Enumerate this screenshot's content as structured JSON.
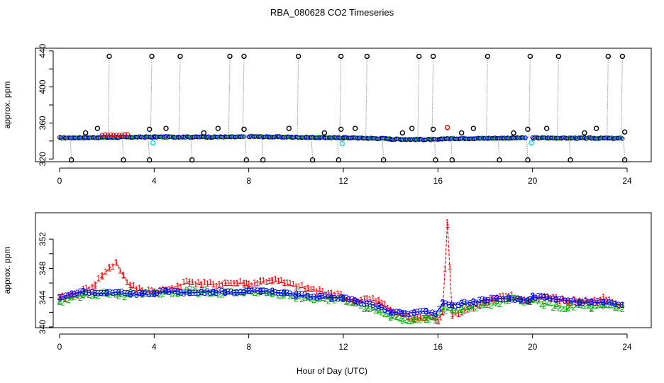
{
  "chart_data": {
    "type": "scatter",
    "title": "RBA_080628  CO2 Timeseries",
    "xlabel": "Hour of Day (UTC)",
    "colors": {
      "black": "#000000",
      "red": "#ff0000",
      "blue": "#0000ff",
      "cyan": "#00e0e0",
      "green": "#00b000",
      "gray": "#8c8c8c"
    },
    "top_panel": {
      "ylabel": "approx. ppm",
      "xlim": [
        0,
        24
      ],
      "ylim": [
        317,
        443
      ],
      "x_ticks": [
        "0",
        "4",
        "8",
        "12",
        "16",
        "20",
        "24"
      ],
      "y_ticks": [
        "320",
        "360",
        "400",
        "440"
      ],
      "y_tick_values": [
        320,
        340,
        360,
        380,
        400,
        420,
        440
      ],
      "baseline_segments": [
        {
          "x": [
            0.0,
            4.0
          ],
          "y": [
            343.5,
            344.5
          ]
        },
        {
          "x": [
            4.0,
            7.8
          ],
          "y": [
            344.5,
            344.5
          ]
        },
        {
          "x": [
            8.0,
            12.0
          ],
          "y": [
            345.0,
            343.5
          ]
        },
        {
          "x": [
            12.0,
            14.0
          ],
          "y": [
            343.8,
            342.5
          ]
        },
        {
          "x": [
            14.0,
            16.1
          ],
          "y": [
            342.0,
            341.5
          ]
        },
        {
          "x": [
            16.1,
            19.7
          ],
          "y": [
            342.5,
            343.5
          ]
        },
        {
          "x": [
            20.0,
            23.8
          ],
          "y": [
            343.5,
            343.0
          ]
        }
      ],
      "red_bump": {
        "x": [
          1.8,
          3.0
        ],
        "y": 347
      },
      "spike_high": [
        2.1,
        3.9,
        5.1,
        7.2,
        7.8,
        10.1,
        11.9,
        13.0,
        15.2,
        15.8,
        18.1,
        19.9,
        21.1,
        23.2,
        23.8
      ],
      "spike_low": [
        0.5,
        2.7,
        3.8,
        5.6,
        7.9,
        8.6,
        10.7,
        11.8,
        13.7,
        15.9,
        16.6,
        18.6,
        19.8,
        21.6,
        23.9
      ],
      "outliers_high": [
        {
          "x": 1.1,
          "y": 349
        },
        {
          "x": 1.6,
          "y": 354
        },
        {
          "x": 3.8,
          "y": 353
        },
        {
          "x": 4.5,
          "y": 354
        },
        {
          "x": 6.1,
          "y": 349
        },
        {
          "x": 6.7,
          "y": 354
        },
        {
          "x": 7.8,
          "y": 353
        },
        {
          "x": 9.7,
          "y": 354
        },
        {
          "x": 11.2,
          "y": 349
        },
        {
          "x": 11.9,
          "y": 353
        },
        {
          "x": 12.5,
          "y": 354
        },
        {
          "x": 14.5,
          "y": 349
        },
        {
          "x": 14.9,
          "y": 354
        },
        {
          "x": 15.8,
          "y": 353
        },
        {
          "x": 17.0,
          "y": 349
        },
        {
          "x": 17.5,
          "y": 354
        },
        {
          "x": 19.2,
          "y": 349
        },
        {
          "x": 19.8,
          "y": 353
        },
        {
          "x": 20.6,
          "y": 354
        },
        {
          "x": 22.2,
          "y": 349
        },
        {
          "x": 22.7,
          "y": 354
        },
        {
          "x": 23.9,
          "y": 350
        }
      ],
      "red_outliers": [
        {
          "x": 16.4,
          "y": 355
        }
      ],
      "cyan_points": [
        {
          "x": 3.95,
          "y": 338
        },
        {
          "x": 11.95,
          "y": 337
        },
        {
          "x": 19.95,
          "y": 338
        }
      ]
    },
    "bottom_panel": {
      "ylabel": "approx. ppm",
      "xlim": [
        0,
        24
      ],
      "ylim": [
        339.9,
        355.6
      ],
      "x_ticks": [
        "0",
        "4",
        "8",
        "12",
        "16",
        "20",
        "24"
      ],
      "y_ticks": [
        "340",
        "344",
        "348",
        "352"
      ],
      "y_tick_values": [
        340,
        342,
        344,
        346,
        348,
        350,
        352
      ],
      "series": [
        {
          "name": "1",
          "color": "red",
          "x": [
            0,
            0.5,
            1.0,
            1.5,
            1.8,
            2.1,
            2.4,
            2.7,
            3.0,
            3.5,
            3.9,
            4.0,
            4.5,
            5.0,
            5.5,
            6.0,
            6.5,
            7.0,
            7.5,
            7.8,
            8.0,
            8.5,
            9.0,
            9.5,
            10.0,
            10.5,
            11.0,
            11.5,
            11.9,
            12.0,
            12.5,
            13.0,
            13.5,
            14.0,
            14.5,
            15.0,
            15.5,
            16.0,
            16.2,
            16.4,
            16.6,
            17.0,
            17.5,
            18.0,
            18.5,
            19.0,
            19.5,
            19.8,
            20.0,
            20.5,
            21.0,
            21.5,
            22.0,
            22.5,
            23.0,
            23.5,
            23.8
          ],
          "y": [
            343.8,
            344.3,
            344.9,
            345.8,
            347.0,
            348.0,
            348.8,
            347.0,
            345.5,
            345.0,
            345.0,
            344.8,
            345.0,
            345.6,
            346.2,
            345.8,
            345.8,
            346.0,
            346.0,
            346.0,
            345.8,
            346.2,
            346.4,
            346.0,
            345.5,
            345.2,
            344.9,
            344.6,
            344.5,
            343.8,
            343.6,
            343.8,
            343.5,
            342.3,
            341.8,
            341.0,
            341.3,
            341.0,
            342.0,
            354.3,
            341.8,
            342.0,
            342.8,
            343.2,
            343.8,
            344.2,
            343.8,
            343.5,
            343.8,
            344.2,
            343.8,
            343.4,
            343.6,
            343.4,
            343.8,
            343.2,
            343.0
          ]
        },
        {
          "name": "2",
          "color": "green",
          "x": [
            0,
            0.5,
            1.0,
            1.5,
            2.0,
            2.5,
            3.0,
            3.5,
            3.9,
            4.0,
            4.5,
            5.0,
            5.5,
            6.0,
            6.5,
            7.0,
            7.5,
            7.8,
            8.0,
            8.5,
            9.0,
            9.5,
            10.0,
            10.5,
            11.0,
            11.5,
            11.9,
            12.0,
            12.5,
            13.0,
            13.5,
            14.0,
            14.5,
            15.0,
            15.5,
            15.9,
            16.2,
            16.6,
            17.0,
            17.5,
            18.0,
            18.5,
            19.0,
            19.5,
            19.8,
            20.0,
            20.5,
            21.0,
            21.5,
            22.0,
            22.5,
            23.0,
            23.5,
            23.8
          ],
          "y": [
            343.6,
            344.0,
            344.3,
            344.4,
            344.5,
            344.2,
            344.4,
            344.4,
            344.5,
            344.5,
            344.8,
            344.6,
            344.8,
            344.7,
            344.7,
            344.6,
            344.6,
            344.6,
            345.0,
            344.8,
            344.6,
            344.5,
            344.1,
            344.0,
            343.9,
            343.8,
            343.9,
            343.8,
            343.2,
            342.6,
            342.2,
            341.4,
            340.8,
            341.0,
            341.2,
            341.3,
            342.4,
            342.3,
            342.3,
            342.8,
            343.0,
            343.2,
            343.6,
            343.8,
            343.5,
            343.7,
            343.2,
            342.8,
            342.5,
            343.0,
            342.6,
            342.8,
            342.6,
            342.4
          ]
        },
        {
          "name": "3",
          "color": "blue",
          "x": [
            0,
            0.5,
            1.0,
            1.5,
            2.0,
            2.5,
            3.0,
            3.5,
            3.9,
            4.0,
            4.5,
            5.0,
            5.5,
            6.0,
            6.5,
            7.0,
            7.5,
            7.8,
            8.0,
            8.5,
            9.0,
            9.5,
            10.0,
            10.5,
            11.0,
            11.5,
            11.9,
            12.0,
            12.5,
            13.0,
            13.5,
            14.0,
            14.5,
            15.0,
            15.5,
            15.9,
            16.2,
            16.6,
            17.0,
            17.5,
            18.0,
            18.5,
            19.0,
            19.5,
            19.8,
            20.0,
            20.5,
            21.0,
            21.5,
            22.0,
            22.5,
            23.0,
            23.5,
            23.8
          ],
          "y": [
            344.0,
            344.5,
            344.8,
            344.6,
            344.6,
            344.7,
            344.5,
            344.5,
            344.5,
            344.6,
            344.9,
            344.8,
            344.6,
            344.8,
            344.8,
            344.8,
            344.7,
            344.7,
            344.9,
            344.9,
            344.8,
            344.6,
            344.4,
            344.2,
            344.1,
            344.0,
            344.0,
            343.9,
            343.6,
            343.2,
            342.8,
            342.1,
            341.8,
            342.0,
            342.1,
            341.8,
            343.2,
            343.0,
            343.2,
            343.4,
            343.7,
            343.9,
            343.8,
            343.8,
            343.6,
            344.1,
            344.0,
            343.8,
            343.6,
            343.4,
            343.4,
            343.3,
            343.1,
            343.0
          ]
        }
      ]
    }
  }
}
